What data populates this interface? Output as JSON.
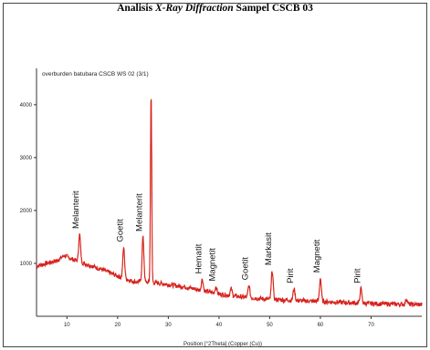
{
  "title": {
    "part1": "Analisis ",
    "part2": "X-Ray Diffraction",
    "part3": " Sampel CSCB 03"
  },
  "colors": {
    "measured": "#d62020",
    "fit": "#e8a040",
    "axis": "#333333"
  },
  "chart_data": {
    "type": "line",
    "title": "Analisis X-Ray Diffraction Sampel CSCB 03",
    "xlabel": "Position [°2Theta] (Copper (Cu))",
    "ylabel": "",
    "sample_label": "overburden batubara CSCB WS 02   (3/1)",
    "xlim": [
      4,
      80
    ],
    "ylim": [
      0,
      4600
    ],
    "xticks": [
      10,
      20,
      30,
      40,
      50,
      60,
      70
    ],
    "yticks": [
      1000,
      2000,
      3000,
      4000
    ],
    "background": [
      [
        4,
        950
      ],
      [
        6,
        1000
      ],
      [
        8,
        1050
      ],
      [
        9.5,
        1150
      ],
      [
        11,
        1080
      ],
      [
        14,
        980
      ],
      [
        17,
        880
      ],
      [
        20,
        760
      ],
      [
        23,
        660
      ],
      [
        26,
        640
      ],
      [
        28,
        630
      ],
      [
        30,
        600
      ],
      [
        33,
        560
      ],
      [
        36,
        500
      ],
      [
        40,
        420
      ],
      [
        45,
        360
      ],
      [
        50,
        320
      ],
      [
        55,
        300
      ],
      [
        60,
        280
      ],
      [
        65,
        260
      ],
      [
        70,
        240
      ],
      [
        75,
        230
      ],
      [
        80,
        220
      ]
    ],
    "peaks": [
      {
        "x": 12.5,
        "y": 1550,
        "label": "Melanterit"
      },
      {
        "x": 21.2,
        "y": 1300,
        "label": "Goetit"
      },
      {
        "x": 25.0,
        "y": 1500,
        "label": "Melanterit"
      },
      {
        "x": 26.6,
        "y": 4300,
        "label": ""
      },
      {
        "x": 26.6,
        "y": 3300,
        "label": ""
      },
      {
        "x": 36.7,
        "y": 700,
        "label": "Hematit"
      },
      {
        "x": 39.4,
        "y": 560,
        "label": "Magnetit"
      },
      {
        "x": 42.4,
        "y": 520,
        "label": ""
      },
      {
        "x": 45.9,
        "y": 580,
        "label": "Goetit"
      },
      {
        "x": 50.5,
        "y": 860,
        "label": "Markasit"
      },
      {
        "x": 54.8,
        "y": 520,
        "label": "Pirit"
      },
      {
        "x": 60.0,
        "y": 720,
        "label": "Magnetit"
      },
      {
        "x": 68.0,
        "y": 520,
        "label": "Pirit"
      },
      {
        "x": 77.0,
        "y": 330,
        "label": ""
      }
    ]
  }
}
